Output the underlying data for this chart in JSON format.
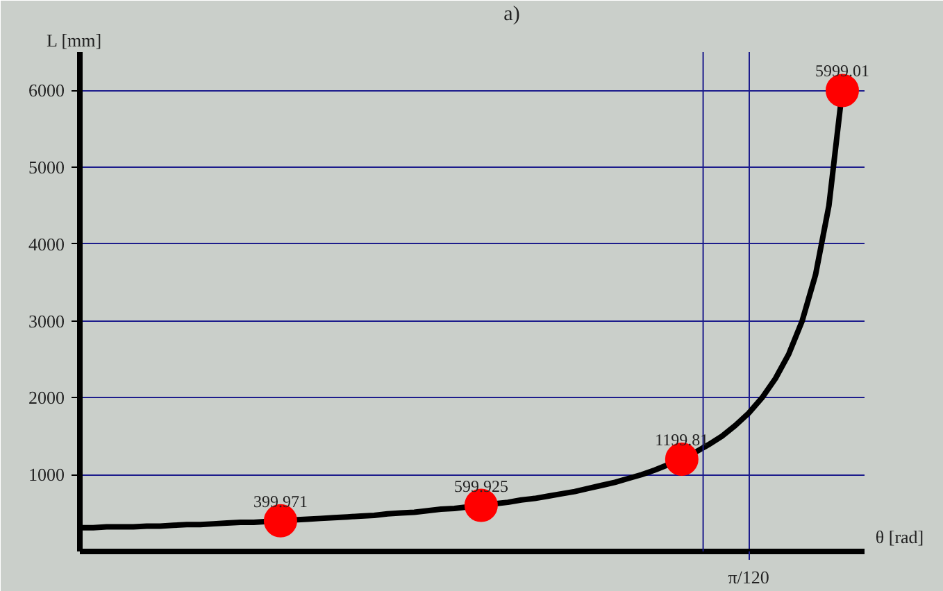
{
  "chart_data": {
    "type": "line",
    "title": "a)",
    "xlabel": "θ [rad]",
    "ylabel": "L [mm]",
    "categories": [
      null,
      null,
      null,
      null,
      null,
      null,
      null,
      null,
      null,
      null,
      null,
      null,
      null,
      null,
      null,
      null,
      null,
      null,
      null,
      null,
      null,
      null,
      null,
      null,
      null,
      null,
      null,
      null,
      null,
      null,
      null,
      null,
      null,
      null,
      null,
      null,
      null,
      null,
      null,
      null,
      null,
      null,
      null,
      null,
      null,
      null,
      null,
      null,
      null,
      null,
      "π/120",
      null,
      null,
      null,
      null,
      null,
      null,
      null
    ],
    "ylim": [
      0,
      6500
    ],
    "yticks": [
      1000,
      2000,
      3000,
      4000,
      5000,
      6000
    ],
    "grid": true,
    "series": [
      {
        "color": "#000000",
        "line_style": "solid",
        "values": [
          310,
          310,
          320,
          320,
          320,
          330,
          330,
          340,
          350,
          350,
          360,
          370,
          380,
          380,
          390,
          400,
          410,
          420,
          430,
          440,
          450,
          460,
          470,
          490,
          500,
          510,
          530,
          550,
          560,
          580,
          600,
          620,
          640,
          670,
          690,
          720,
          750,
          780,
          820,
          860,
          900,
          950,
          1000,
          1060,
          1130,
          1200,
          1290,
          1390,
          1500,
          1640,
          1800,
          2000,
          2250,
          2570,
          3000,
          3600,
          4500,
          6000
        ]
      },
      {
        "type": "scatter",
        "color": "#ff0000",
        "marker": "circle",
        "data_labels": true,
        "values": [
          null,
          null,
          null,
          null,
          null,
          null,
          null,
          null,
          null,
          null,
          null,
          null,
          null,
          null,
          null,
          399.971,
          null,
          null,
          null,
          null,
          null,
          null,
          null,
          null,
          null,
          null,
          null,
          null,
          null,
          null,
          599.925,
          null,
          null,
          null,
          null,
          null,
          null,
          null,
          null,
          null,
          null,
          null,
          null,
          null,
          null,
          1199.81,
          null,
          null,
          null,
          null,
          null,
          null,
          null,
          null,
          null,
          null,
          null,
          5999.01
        ]
      }
    ]
  }
}
